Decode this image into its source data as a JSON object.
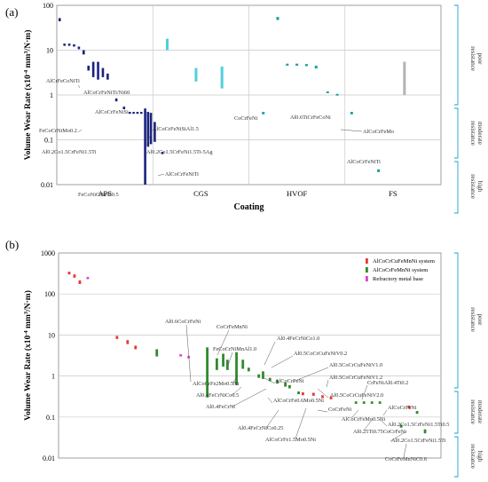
{
  "chart_data": [
    {
      "type": "range-bar",
      "panel_label": "(a)",
      "ylabel": "Volume Wear Rate (x10⁻⁴ mm³/N·m)",
      "xlabel": "Coating",
      "yscale": "log",
      "ylim": [
        0.01,
        100
      ],
      "ytick_labels": [
        "100",
        "10",
        "1",
        "0.1",
        "0.01"
      ],
      "categories": [
        "APS",
        "CGS",
        "HVOF",
        "FS"
      ],
      "category_colors": {
        "APS": "#1a237e",
        "CGS": "#4fd0dc",
        "HVOF": "#1aa3a3",
        "FS": "#b3b3b3"
      },
      "bars": [
        {
          "cat": "APS",
          "x": 0.03,
          "ylo": 44,
          "yhi": 52
        },
        {
          "cat": "APS",
          "x": 0.08,
          "ylo": 12.5,
          "yhi": 14
        },
        {
          "cat": "APS",
          "x": 0.13,
          "ylo": 12.5,
          "yhi": 14
        },
        {
          "cat": "APS",
          "x": 0.18,
          "ylo": 12,
          "yhi": 13.5
        },
        {
          "cat": "APS",
          "x": 0.23,
          "ylo": 10.5,
          "yhi": 12
        },
        {
          "cat": "APS",
          "x": 0.28,
          "ylo": 8,
          "yhi": 10
        },
        {
          "cat": "APS",
          "x": 0.33,
          "ylo": 3.5,
          "yhi": 4.5
        },
        {
          "cat": "APS",
          "x": 0.38,
          "ylo": 2.5,
          "yhi": 5.5
        },
        {
          "cat": "APS",
          "x": 0.43,
          "ylo": 2.2,
          "yhi": 5.5
        },
        {
          "cat": "APS",
          "x": 0.48,
          "ylo": 2.5,
          "yhi": 4
        },
        {
          "cat": "APS",
          "x": 0.53,
          "ylo": 2.2,
          "yhi": 3
        },
        {
          "cat": "APS",
          "x": 0.62,
          "ylo": 0.72,
          "yhi": 0.84
        },
        {
          "cat": "APS",
          "x": 0.7,
          "ylo": 0.48,
          "yhi": 0.55
        },
        {
          "cat": "APS",
          "x": 0.76,
          "ylo": 0.38,
          "yhi": 0.42
        },
        {
          "cat": "APS",
          "x": 0.8,
          "ylo": 0.38,
          "yhi": 0.42
        },
        {
          "cat": "APS",
          "x": 0.84,
          "ylo": 0.38,
          "yhi": 0.42
        },
        {
          "cat": "APS",
          "x": 0.88,
          "ylo": 0.38,
          "yhi": 0.42
        },
        {
          "cat": "APS",
          "x": 0.92,
          "ylo": 0.01,
          "yhi": 0.5
        },
        {
          "cat": "APS",
          "x": 0.95,
          "ylo": 0.07,
          "yhi": 0.42
        },
        {
          "cat": "APS",
          "x": 0.98,
          "ylo": 0.08,
          "yhi": 0.4
        },
        {
          "cat": "APS",
          "x": 1.02,
          "ylo": 0.09,
          "yhi": 0.25
        },
        {
          "cat": "APS",
          "x": 1.1,
          "ylo": 0.048,
          "yhi": 0.054
        },
        {
          "cat": "CGS",
          "x": 1.15,
          "ylo": 10,
          "yhi": 18
        },
        {
          "cat": "CGS",
          "x": 1.45,
          "ylo": 2,
          "yhi": 4
        },
        {
          "cat": "CGS",
          "x": 1.72,
          "ylo": 1.4,
          "yhi": 4.3
        },
        {
          "cat": "HVOF",
          "x": 2.15,
          "ylo": 0.37,
          "yhi": 0.42
        },
        {
          "cat": "HVOF",
          "x": 2.3,
          "ylo": 47,
          "yhi": 55
        },
        {
          "cat": "HVOF",
          "x": 2.4,
          "ylo": 4.5,
          "yhi": 5
        },
        {
          "cat": "HVOF",
          "x": 2.5,
          "ylo": 4.5,
          "yhi": 5
        },
        {
          "cat": "HVOF",
          "x": 2.6,
          "ylo": 4.4,
          "yhi": 4.9
        },
        {
          "cat": "HVOF",
          "x": 2.7,
          "ylo": 3.9,
          "yhi": 4.5
        },
        {
          "cat": "HVOF",
          "x": 2.82,
          "ylo": 1.1,
          "yhi": 1.2
        },
        {
          "cat": "HVOF",
          "x": 2.92,
          "ylo": 0.98,
          "yhi": 1.06
        },
        {
          "cat": "HVOF",
          "x": 3.07,
          "ylo": 0.37,
          "yhi": 0.42
        },
        {
          "cat": "HVOF",
          "x": 3.35,
          "ylo": 0.019,
          "yhi": 0.022
        },
        {
          "cat": "FS",
          "x": 3.62,
          "ylo": 1,
          "yhi": 5.5
        }
      ],
      "annotations": [
        "AlCrFeCoNiTi",
        "AlCoCrFeNiTi/Ni60",
        "AlCoCrFeNiSi",
        "FeCoCrNiMo0.2",
        "Al0.2Co1.5CrFeNi1.5Ti",
        "AlCoCrFeNiSiAl1.5",
        "Al0.2Co1.5CrFeNi1.5Ti-5Ag",
        "AlCoCrFeNiTi",
        "FeCoNiCrSiAl0.5",
        "CoCrFeNi",
        "Al0.6TiCrFeCoNi",
        "AlCoCrFeMo",
        "AlCoCrFeNiTi"
      ],
      "resistance_bands": [
        "poor resistance",
        "moderate resistance",
        "high resistance"
      ]
    },
    {
      "type": "range-bar",
      "panel_label": "(b)",
      "ylabel": "Volume Wear Rate (x10⁻⁴ mm³/N·m)",
      "yscale": "log",
      "ylim": [
        0.01,
        1000
      ],
      "ytick_labels": [
        "1000",
        "100",
        "10",
        "1",
        "0.1",
        "0.01"
      ],
      "legend": [
        {
          "label": "AlCoCrCuFeMnNi system",
          "color": "#e53935"
        },
        {
          "label": "AlCoCrFeMnNi system",
          "color": "#2e8b2e"
        },
        {
          "label": "Refractory metal base",
          "color": "#e040c8"
        }
      ],
      "bars": [
        {
          "sys": "r",
          "x": 0.2,
          "ylo": 300,
          "yhi": 350
        },
        {
          "sys": "r",
          "x": 0.3,
          "ylo": 250,
          "yhi": 300
        },
        {
          "sys": "r",
          "x": 0.4,
          "ylo": 175,
          "yhi": 215
        },
        {
          "sys": "r",
          "x": 1.1,
          "ylo": 8,
          "yhi": 9.5
        },
        {
          "sys": "r",
          "x": 1.3,
          "ylo": 6,
          "yhi": 7.5
        },
        {
          "sys": "r",
          "x": 1.45,
          "ylo": 4.5,
          "yhi": 5.5
        },
        {
          "sys": "r",
          "x": 4.6,
          "ylo": 0.34,
          "yhi": 0.4
        },
        {
          "sys": "r",
          "x": 4.8,
          "ylo": 0.33,
          "yhi": 0.39
        },
        {
          "sys": "r",
          "x": 4.97,
          "ylo": 0.29,
          "yhi": 0.34
        },
        {
          "sys": "r",
          "x": 5.13,
          "ylo": 0.27,
          "yhi": 0.32
        },
        {
          "sys": "r",
          "x": 6.6,
          "ylo": 0.16,
          "yhi": 0.19
        },
        {
          "sys": "g",
          "x": 1.85,
          "ylo": 3,
          "yhi": 4.5
        },
        {
          "sys": "g",
          "x": 2.8,
          "ylo": 0.3,
          "yhi": 5
        },
        {
          "sys": "g",
          "x": 2.98,
          "ylo": 1.4,
          "yhi": 2.7
        },
        {
          "sys": "g",
          "x": 3.1,
          "ylo": 1.7,
          "yhi": 3.5
        },
        {
          "sys": "g",
          "x": 3.18,
          "ylo": 1.4,
          "yhi": 2.5
        },
        {
          "sys": "g",
          "x": 3.35,
          "ylo": 0.6,
          "yhi": 3.8
        },
        {
          "sys": "g",
          "x": 3.47,
          "ylo": 1.5,
          "yhi": 2.5
        },
        {
          "sys": "g",
          "x": 3.58,
          "ylo": 1.3,
          "yhi": 1.6
        },
        {
          "sys": "g",
          "x": 3.77,
          "ylo": 0.9,
          "yhi": 1.1
        },
        {
          "sys": "g",
          "x": 3.85,
          "ylo": 0.85,
          "yhi": 1.3
        },
        {
          "sys": "g",
          "x": 3.98,
          "ylo": 0.75,
          "yhi": 0.9
        },
        {
          "sys": "g",
          "x": 4.12,
          "ylo": 0.65,
          "yhi": 0.8
        },
        {
          "sys": "g",
          "x": 4.27,
          "ylo": 0.55,
          "yhi": 0.7
        },
        {
          "sys": "g",
          "x": 4.35,
          "ylo": 0.5,
          "yhi": 0.6
        },
        {
          "sys": "g",
          "x": 4.52,
          "ylo": 0.36,
          "yhi": 0.42
        },
        {
          "sys": "g",
          "x": 5.6,
          "ylo": 0.21,
          "yhi": 0.24
        },
        {
          "sys": "g",
          "x": 5.75,
          "ylo": 0.21,
          "yhi": 0.24
        },
        {
          "sys": "g",
          "x": 5.9,
          "ylo": 0.21,
          "yhi": 0.24
        },
        {
          "sys": "g",
          "x": 6.05,
          "ylo": 0.21,
          "yhi": 0.24
        },
        {
          "sys": "g",
          "x": 6.45,
          "ylo": 0.055,
          "yhi": 0.065
        },
        {
          "sys": "g",
          "x": 6.75,
          "ylo": 0.12,
          "yhi": 0.14
        },
        {
          "sys": "g",
          "x": 6.9,
          "ylo": 0.04,
          "yhi": 0.05
        },
        {
          "sys": "m",
          "x": 0.55,
          "ylo": 230,
          "yhi": 260
        },
        {
          "sys": "m",
          "x": 2.3,
          "ylo": 3,
          "yhi": 3.4
        },
        {
          "sys": "m",
          "x": 2.45,
          "ylo": 2.7,
          "yhi": 3.1
        }
      ],
      "annotations": [
        "Al0.6CoCrFeNi",
        "CoCrFeMnNi",
        "FeCoCrNiMnAl1.0",
        "Al0.4FeCrNiCo1.0",
        "Al0.5CoCrCuFeNiV0.2",
        "Al0.5CoCrCuFeNiV1.0",
        "Al0.5CoCrCuFeNiV1.2",
        "AlCoCrFe2Mo0.5Ni",
        "Al0.4FeCrNiCo0.5",
        "AlCoCrFeNi",
        "Al0.4FeCrNi",
        "Al0.5CoCrCuFeNiV2.0",
        "CrFeNiAl0.4Ti0.2",
        "AlCoCrFeNi",
        "AlCoCrFe0.6Mo0.5Ni",
        "Al0.4FeCrNiCo0.25",
        "CoCrFeNi",
        "AlCoCrFeMo0.5Ni",
        "Al0.2Co1.5CrFeNi1.5Ti0.5",
        "AlCoCrFe1.5Mo0.5Ni",
        "Al0.25Ti0.75CoCrFeNi",
        "Al0.2Co1.5CrFeNi1.5Ti",
        "CoCrFeMnNiC0.6"
      ],
      "resistance_bands": [
        "poor resistance",
        "moderate resistance",
        "high resistance"
      ]
    }
  ],
  "ui": {
    "a": {
      "ylabel": "Volume Wear Rate (x10",
      "ylabel_sup": "-4",
      "ylabel_tail": " mm",
      "ylabel_sup2": "3",
      "ylabel_end": "/N·m)",
      "xlabel": "Coating"
    },
    "res": {
      "poor1": "poor",
      "poor2": "resistance",
      "mod1": "moderate",
      "mod2": "resistance",
      "high1": "high",
      "high2": "resistance"
    }
  }
}
